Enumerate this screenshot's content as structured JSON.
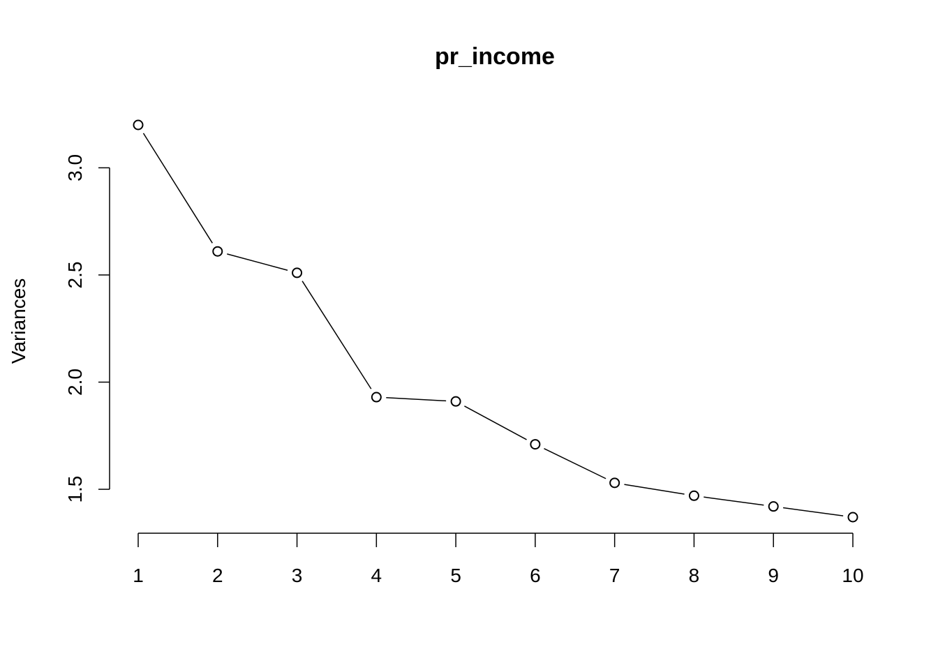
{
  "chart_data": {
    "type": "line",
    "title": "pr_income",
    "xlabel": "",
    "ylabel": "Variances",
    "x": [
      1,
      2,
      3,
      4,
      5,
      6,
      7,
      8,
      9,
      10
    ],
    "x_tick_labels": [
      "1",
      "2",
      "3",
      "4",
      "5",
      "6",
      "7",
      "8",
      "9",
      "10"
    ],
    "values": [
      3.2,
      2.61,
      2.51,
      1.93,
      1.91,
      1.71,
      1.53,
      1.47,
      1.42,
      1.37
    ],
    "y_ticks": [
      1.5,
      2.0,
      2.5,
      3.0
    ],
    "y_tick_labels": [
      "1.5",
      "2.0",
      "2.5",
      "3.0"
    ],
    "xlim": [
      1,
      10
    ],
    "ylim": [
      1.37,
      3.2
    ],
    "marker": "open-circle",
    "grid": false,
    "line_color": "#000000"
  }
}
